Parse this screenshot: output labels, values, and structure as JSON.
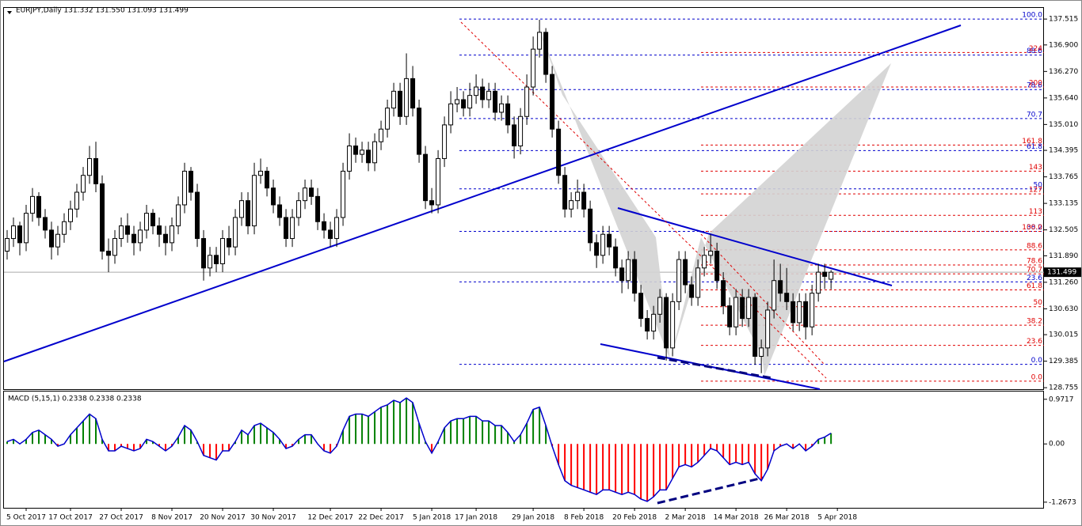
{
  "chart_data": {
    "type": "candlestick",
    "header": "EURJPY,Daily  131.332 131.550 131.093 131.499",
    "candles": [
      [
        132.0,
        132.5,
        131.8,
        132.3
      ],
      [
        132.3,
        132.8,
        132.1,
        132.6
      ],
      [
        132.6,
        132.7,
        131.9,
        132.2
      ],
      [
        132.2,
        133.1,
        132.0,
        132.9
      ],
      [
        132.9,
        133.5,
        132.7,
        133.3
      ],
      [
        133.3,
        133.4,
        132.6,
        132.8
      ],
      [
        132.8,
        133.0,
        132.3,
        132.5
      ],
      [
        132.5,
        132.7,
        131.8,
        132.1
      ],
      [
        132.1,
        132.6,
        131.9,
        132.4
      ],
      [
        132.4,
        132.9,
        132.2,
        132.7
      ],
      [
        132.7,
        133.2,
        132.5,
        133.0
      ],
      [
        133.0,
        133.6,
        132.8,
        133.4
      ],
      [
        133.4,
        134.0,
        133.2,
        133.8
      ],
      [
        133.8,
        134.5,
        133.6,
        134.2
      ],
      [
        134.2,
        134.6,
        133.4,
        133.6
      ],
      [
        133.6,
        133.8,
        131.8,
        132.0
      ],
      [
        132.0,
        132.3,
        131.5,
        131.9
      ],
      [
        131.9,
        132.5,
        131.7,
        132.3
      ],
      [
        132.3,
        132.8,
        132.1,
        132.6
      ],
      [
        132.6,
        132.9,
        132.2,
        132.4
      ],
      [
        132.4,
        132.6,
        131.9,
        132.2
      ],
      [
        132.2,
        132.7,
        132.0,
        132.5
      ],
      [
        132.5,
        133.1,
        132.3,
        132.9
      ],
      [
        132.9,
        133.0,
        132.4,
        132.6
      ],
      [
        132.6,
        132.8,
        132.1,
        132.4
      ],
      [
        132.4,
        132.6,
        131.9,
        132.2
      ],
      [
        132.2,
        132.8,
        132.0,
        132.6
      ],
      [
        132.6,
        133.3,
        132.4,
        133.1
      ],
      [
        133.1,
        134.1,
        132.9,
        133.9
      ],
      [
        133.9,
        134.0,
        133.2,
        133.4
      ],
      [
        133.4,
        133.6,
        132.1,
        132.3
      ],
      [
        132.3,
        132.5,
        131.3,
        131.6
      ],
      [
        131.6,
        132.1,
        131.4,
        131.9
      ],
      [
        131.9,
        132.1,
        131.5,
        131.7
      ],
      [
        131.7,
        132.5,
        131.5,
        132.3
      ],
      [
        132.3,
        132.6,
        131.9,
        132.1
      ],
      [
        132.1,
        133.0,
        131.9,
        132.8
      ],
      [
        132.8,
        133.4,
        132.6,
        133.2
      ],
      [
        133.2,
        133.4,
        132.4,
        132.6
      ],
      [
        132.6,
        134.1,
        132.4,
        133.8
      ],
      [
        133.8,
        134.2,
        133.6,
        133.9
      ],
      [
        133.9,
        134.0,
        133.3,
        133.5
      ],
      [
        133.5,
        133.7,
        132.9,
        133.1
      ],
      [
        133.1,
        133.3,
        132.6,
        132.8
      ],
      [
        132.8,
        133.0,
        132.1,
        132.3
      ],
      [
        132.3,
        133.0,
        132.1,
        132.8
      ],
      [
        132.8,
        133.4,
        132.6,
        133.2
      ],
      [
        133.2,
        133.7,
        133.0,
        133.5
      ],
      [
        133.5,
        133.7,
        133.1,
        133.3
      ],
      [
        133.3,
        133.5,
        132.5,
        132.7
      ],
      [
        132.7,
        132.9,
        132.3,
        132.5
      ],
      [
        132.5,
        132.7,
        132.1,
        132.3
      ],
      [
        132.3,
        133.0,
        132.1,
        132.8
      ],
      [
        132.8,
        134.1,
        132.6,
        133.9
      ],
      [
        133.9,
        134.8,
        133.7,
        134.5
      ],
      [
        134.5,
        134.7,
        134.1,
        134.3
      ],
      [
        134.3,
        134.6,
        134.1,
        134.4
      ],
      [
        134.4,
        134.6,
        133.9,
        134.1
      ],
      [
        134.1,
        134.8,
        133.9,
        134.6
      ],
      [
        134.6,
        135.1,
        134.4,
        134.9
      ],
      [
        134.9,
        135.6,
        134.7,
        135.4
      ],
      [
        135.4,
        136.0,
        135.2,
        135.8
      ],
      [
        135.8,
        136.0,
        135.0,
        135.2
      ],
      [
        135.2,
        136.7,
        135.0,
        136.1
      ],
      [
        136.1,
        136.4,
        135.2,
        135.4
      ],
      [
        135.4,
        135.6,
        134.1,
        134.3
      ],
      [
        134.3,
        134.5,
        133.0,
        133.2
      ],
      [
        133.2,
        133.5,
        132.9,
        133.1
      ],
      [
        133.1,
        134.4,
        132.9,
        134.2
      ],
      [
        134.2,
        135.2,
        134.0,
        135.0
      ],
      [
        135.0,
        135.8,
        134.8,
        135.5
      ],
      [
        135.5,
        135.9,
        135.3,
        135.6
      ],
      [
        135.6,
        135.8,
        135.2,
        135.4
      ],
      [
        135.4,
        136.0,
        135.2,
        135.7
      ],
      [
        135.7,
        136.2,
        135.5,
        135.9
      ],
      [
        135.9,
        136.1,
        135.4,
        135.6
      ],
      [
        135.6,
        136.0,
        135.4,
        135.8
      ],
      [
        135.8,
        136.0,
        135.1,
        135.3
      ],
      [
        135.3,
        135.7,
        135.1,
        135.5
      ],
      [
        135.5,
        135.7,
        134.8,
        135.0
      ],
      [
        135.0,
        135.2,
        134.2,
        134.5
      ],
      [
        134.5,
        135.4,
        134.3,
        135.2
      ],
      [
        135.2,
        136.2,
        135.0,
        135.9
      ],
      [
        135.9,
        137.1,
        135.7,
        136.8
      ],
      [
        136.8,
        137.5,
        136.6,
        137.2
      ],
      [
        137.2,
        137.3,
        136.0,
        136.2
      ],
      [
        136.2,
        136.4,
        134.7,
        134.9
      ],
      [
        134.9,
        135.1,
        133.6,
        133.8
      ],
      [
        133.8,
        134.0,
        132.8,
        133.0
      ],
      [
        133.0,
        133.4,
        132.8,
        133.2
      ],
      [
        133.2,
        133.7,
        133.0,
        133.4
      ],
      [
        133.4,
        133.6,
        132.8,
        133.0
      ],
      [
        133.0,
        133.2,
        132.0,
        132.2
      ],
      [
        132.2,
        132.4,
        131.6,
        131.9
      ],
      [
        131.9,
        132.6,
        131.7,
        132.4
      ],
      [
        132.4,
        132.6,
        131.9,
        132.1
      ],
      [
        132.1,
        132.3,
        131.4,
        131.6
      ],
      [
        131.6,
        131.8,
        131.0,
        131.3
      ],
      [
        131.3,
        132.0,
        131.1,
        131.8
      ],
      [
        131.8,
        132.0,
        130.8,
        131.0
      ],
      [
        131.0,
        131.2,
        130.2,
        130.4
      ],
      [
        130.4,
        130.6,
        129.9,
        130.1
      ],
      [
        130.1,
        130.7,
        129.9,
        130.5
      ],
      [
        130.5,
        131.1,
        130.3,
        130.9
      ],
      [
        130.9,
        131.0,
        129.4,
        129.7
      ],
      [
        129.7,
        131.0,
        129.5,
        130.8
      ],
      [
        130.8,
        132.0,
        130.6,
        131.8
      ],
      [
        131.8,
        132.0,
        131.0,
        131.2
      ],
      [
        131.2,
        131.4,
        130.7,
        130.9
      ],
      [
        130.9,
        131.8,
        130.7,
        131.6
      ],
      [
        131.6,
        132.1,
        131.4,
        131.9
      ],
      [
        131.9,
        132.4,
        131.7,
        132.0
      ],
      [
        132.0,
        132.2,
        131.1,
        131.3
      ],
      [
        131.3,
        131.5,
        130.5,
        130.7
      ],
      [
        130.7,
        130.9,
        130.0,
        130.2
      ],
      [
        130.2,
        131.1,
        130.0,
        130.9
      ],
      [
        130.9,
        131.1,
        130.2,
        130.4
      ],
      [
        130.4,
        131.1,
        130.2,
        130.9
      ],
      [
        130.9,
        131.0,
        129.3,
        129.5
      ],
      [
        129.5,
        129.9,
        129.1,
        129.7
      ],
      [
        129.7,
        130.8,
        129.5,
        130.6
      ],
      [
        130.6,
        131.8,
        130.4,
        131.3
      ],
      [
        131.3,
        131.7,
        130.8,
        131.0
      ],
      [
        131.0,
        131.6,
        130.6,
        130.8
      ],
      [
        130.8,
        131.0,
        130.1,
        130.3
      ],
      [
        130.3,
        131.0,
        130.1,
        130.8
      ],
      [
        130.8,
        131.0,
        129.9,
        130.2
      ],
      [
        130.2,
        131.2,
        130.0,
        131.0
      ],
      [
        131.0,
        131.7,
        130.8,
        131.5
      ],
      [
        131.5,
        131.7,
        131.1,
        131.4
      ],
      [
        131.332,
        131.55,
        131.093,
        131.499
      ]
    ],
    "up_color": "#ffffff",
    "down_color": "#000000",
    "xlim": [
      -0.5,
      163.6
    ],
    "xticks": [
      {
        "value": 3,
        "label": "5 Oct 2017"
      },
      {
        "value": 10,
        "label": "17 Oct 2017"
      },
      {
        "value": 18,
        "label": "27 Oct 2017"
      },
      {
        "value": 26,
        "label": "8 Nov 2017"
      },
      {
        "value": 34,
        "label": "20 Nov 2017"
      },
      {
        "value": 42,
        "label": "30 Nov 2017"
      },
      {
        "value": 51,
        "label": "12 Dec 2017"
      },
      {
        "value": 59,
        "label": "22 Dec 2017"
      },
      {
        "value": 67,
        "label": "5 Jan 2018"
      },
      {
        "value": 74,
        "label": "17 Jan 2018"
      },
      {
        "value": 83,
        "label": "29 Jan 2018"
      },
      {
        "value": 91,
        "label": "8 Feb 2018"
      },
      {
        "value": 99,
        "label": "20 Feb 2018"
      },
      {
        "value": 107,
        "label": "2 Mar 2018"
      },
      {
        "value": 115,
        "label": "14 Mar 2018"
      },
      {
        "value": 123,
        "label": "26 Mar 2018"
      },
      {
        "value": 131,
        "label": "5 Apr 2018"
      }
    ],
    "ylim": [
      128.72,
      137.78
    ],
    "yticks": [
      137.515,
      {
        "value": 136.9,
        "label": "136.900"
      },
      {
        "value": 136.27,
        "label": "136.270"
      },
      {
        "value": 135.64,
        "label": "135.640"
      },
      {
        "value": 135.01,
        "label": "135.010"
      },
      134.395,
      133.765,
      133.135,
      132.505,
      {
        "value": 131.89,
        "label": "131.890"
      },
      {
        "value": 131.26,
        "label": "131.260"
      },
      {
        "value": 130.63,
        "label": "130.630"
      },
      130.015,
      129.385,
      128.755
    ],
    "fib_blue": [
      {
        "value": 137.515,
        "label": "100.0"
      },
      {
        "value": 136.66,
        "label": "88.6"
      },
      {
        "value": 135.84,
        "label": "78.6"
      },
      {
        "value": 135.15,
        "label": "70.7"
      },
      {
        "value": 134.39,
        "label": "61.8"
      },
      {
        "value": 133.48,
        "label": "50"
      },
      {
        "value": 132.47,
        "label": "38.2"
      },
      {
        "value": 131.27,
        "label": "23.6"
      },
      {
        "value": 129.31,
        "label": "0.0"
      }
    ],
    "fib_red": [
      {
        "value": 136.72,
        "label": "224"
      },
      {
        "value": 135.9,
        "label": "200"
      },
      {
        "value": 134.52,
        "label": "161.8"
      },
      {
        "value": 133.9,
        "label": "143"
      },
      {
        "value": 133.36,
        "label": "127"
      },
      {
        "value": 132.85,
        "label": "113"
      },
      {
        "value": 132.47,
        "label": "100.0"
      },
      {
        "value": 132.03,
        "label": "88.6"
      },
      {
        "value": 131.67,
        "label": "78.6"
      },
      {
        "value": 131.46,
        "label": "70.7"
      },
      {
        "value": 131.08,
        "label": "61.8"
      },
      {
        "value": 130.68,
        "label": "50"
      },
      {
        "value": 130.24,
        "label": "38.2"
      },
      {
        "value": 129.76,
        "label": "23.6"
      },
      {
        "value": 128.91,
        "label": "0.0"
      }
    ],
    "fib_blue_color": "#0000cc",
    "fib_red_color": "#e00000",
    "macd": {
      "header": "MACD (5,15,1) 0.2338 0.2338 0.2338",
      "values": [
        0.05,
        0.1,
        0,
        0.1,
        0.25,
        0.3,
        0.2,
        0.1,
        -0.05,
        0,
        0.2,
        0.35,
        0.5,
        0.65,
        0.55,
        0.1,
        -0.15,
        -0.15,
        -0.05,
        -0.1,
        -0.15,
        -0.1,
        0.1,
        0.05,
        -0.05,
        -0.15,
        -0.05,
        0.15,
        0.4,
        0.3,
        0.05,
        -0.25,
        -0.3,
        -0.35,
        -0.15,
        -0.15,
        0.05,
        0.3,
        0.2,
        0.4,
        0.45,
        0.35,
        0.25,
        0.1,
        -0.1,
        -0.05,
        0.1,
        0.2,
        0.2,
        0,
        -0.15,
        -0.2,
        -0.05,
        0.3,
        0.6,
        0.65,
        0.65,
        0.6,
        0.7,
        0.8,
        0.85,
        0.95,
        0.9,
        1.0,
        0.9,
        0.45,
        0.05,
        -0.2,
        0.05,
        0.35,
        0.5,
        0.55,
        0.55,
        0.6,
        0.6,
        0.5,
        0.5,
        0.4,
        0.4,
        0.25,
        0.05,
        0.2,
        0.45,
        0.75,
        0.8,
        0.4,
        -0.05,
        -0.45,
        -0.8,
        -0.9,
        -0.95,
        -1.0,
        -1.05,
        -1.1,
        -1.0,
        -1.0,
        -1.05,
        -1.1,
        -1.05,
        -1.1,
        -1.2,
        -1.25,
        -1.15,
        -1.0,
        -1.0,
        -0.75,
        -0.5,
        -0.45,
        -0.5,
        -0.4,
        -0.25,
        -0.1,
        -0.15,
        -0.3,
        -0.45,
        -0.4,
        -0.45,
        -0.4,
        -0.65,
        -0.8,
        -0.55,
        -0.15,
        -0.05,
        0,
        -0.1,
        0,
        -0.15,
        -0.05,
        0.1,
        0.15,
        0.2338
      ],
      "pos_color": "#008000",
      "neg_color": "#ff0000",
      "line_color": "#0000cc",
      "ylim": [
        -1.39,
        1.14
      ],
      "yticks": [
        0.9717,
        {
          "value": 0,
          "label": "0.00"
        },
        -1.2673
      ]
    }
  }
}
